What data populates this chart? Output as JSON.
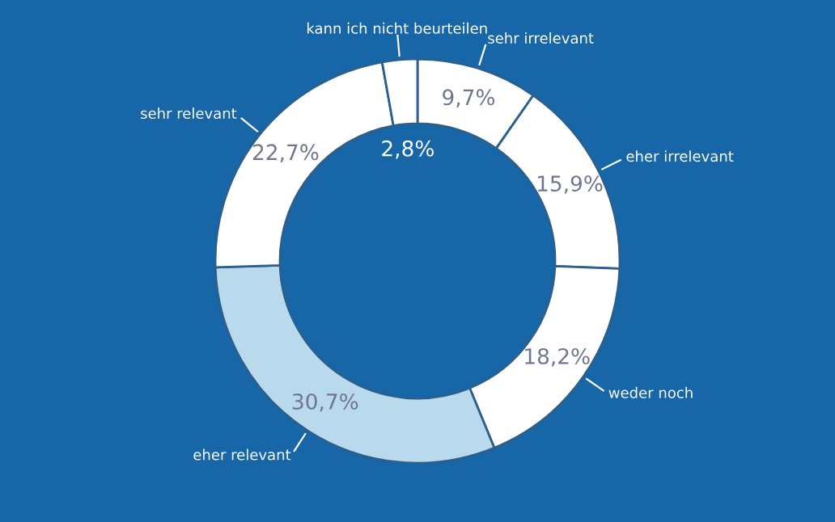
{
  "chart_data": {
    "type": "donut",
    "categories": [
      "sehr irrelevant",
      "eher irrelevant",
      "weder noch",
      "eher relevant",
      "sehr relevant",
      "kann ich nicht beurteilen"
    ],
    "values": [
      9.7,
      15.9,
      18.2,
      30.7,
      22.7,
      2.8
    ],
    "value_labels": [
      "9,7%",
      "15,9%",
      "18,2%",
      "30,7%",
      "22,7%",
      "2,8%"
    ],
    "colors": [
      "#ffffff",
      "#ffffff",
      "#ffffff",
      "#b9d9ec",
      "#ffffff",
      "#ffffff"
    ],
    "legend": false
  }
}
